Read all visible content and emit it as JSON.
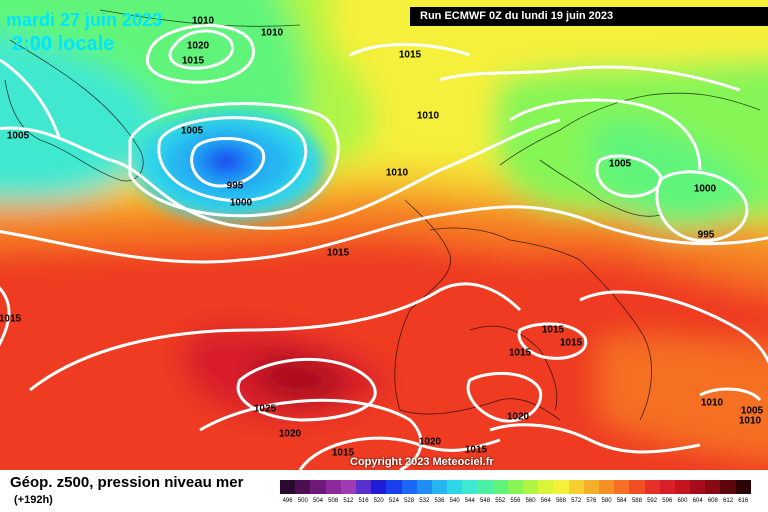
{
  "header": {
    "date": "mardi 27 juin 2023",
    "time": "2:00 locale",
    "run": "Run ECMWF 0Z du lundi 19 juin 2023"
  },
  "copyright": "Copyright 2023 Meteociel.fr",
  "footer": {
    "title": "Géop. z500, pression niveau mer",
    "lead": "(+192h)"
  },
  "pressure_labels": [
    "1010",
    "1020",
    "1015",
    "1010",
    "1015",
    "1005",
    "1005",
    "1010",
    "995",
    "1000",
    "1010",
    "1005",
    "1000",
    "995",
    "1015",
    "1015",
    "1015",
    "1015",
    "1015",
    "1025",
    "1020",
    "1015",
    "1020",
    "1015",
    "1020",
    "1010",
    "1005",
    "1010"
  ],
  "legend": {
    "values": [
      "496",
      "500",
      "504",
      "508",
      "512",
      "516",
      "520",
      "524",
      "528",
      "532",
      "536",
      "540",
      "544",
      "548",
      "552",
      "556",
      "560",
      "564",
      "568",
      "572",
      "576",
      "580",
      "584",
      "588",
      "592",
      "596",
      "600",
      "604",
      "608",
      "612",
      "616"
    ],
    "colors": [
      "#2a0a2e",
      "#4b0f52",
      "#6f1a7a",
      "#8c2a9a",
      "#a13bb4",
      "#5a2fd0",
      "#1f1bd6",
      "#1a3ff0",
      "#1c66f8",
      "#1f8ef5",
      "#27b5f2",
      "#2fd6ea",
      "#3fe8d0",
      "#49f0a5",
      "#60f57a",
      "#86f556",
      "#b0f545",
      "#d8f53a",
      "#f5f03a",
      "#f5d030",
      "#f5b02a",
      "#f59026",
      "#f56f24",
      "#f24e24",
      "#e8302a",
      "#d81f2a",
      "#c41420",
      "#a60d1a",
      "#880a14",
      "#5e060e",
      "#2e0306"
    ]
  },
  "colors": {
    "contour": "#ffffff",
    "title_text": "#00e5ff"
  }
}
